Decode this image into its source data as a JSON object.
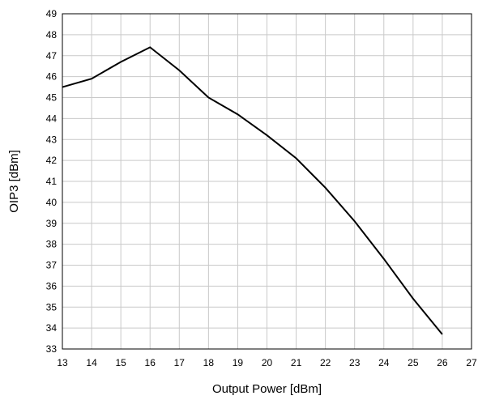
{
  "chart_data": {
    "type": "line",
    "title": "",
    "xlabel": "Output Power [dBm]",
    "ylabel": "OIP3 [dBm]",
    "xlim": [
      13,
      27
    ],
    "ylim": [
      33,
      49
    ],
    "xticks": [
      13,
      14,
      15,
      16,
      17,
      18,
      19,
      20,
      21,
      22,
      23,
      24,
      25,
      26,
      27
    ],
    "yticks": [
      33,
      34,
      35,
      36,
      37,
      38,
      39,
      40,
      41,
      42,
      43,
      44,
      45,
      46,
      47,
      48,
      49
    ],
    "grid": true,
    "line_color": "#000000",
    "grid_color": "#c9c9c9",
    "series": [
      {
        "x": [
          13,
          14,
          15,
          16,
          17,
          18,
          19,
          20,
          21,
          22,
          23,
          24,
          25,
          26
        ],
        "values": [
          45.5,
          45.9,
          46.7,
          47.4,
          46.3,
          45.0,
          44.2,
          43.2,
          42.1,
          40.7,
          39.1,
          37.3,
          35.4,
          33.7
        ]
      }
    ]
  }
}
